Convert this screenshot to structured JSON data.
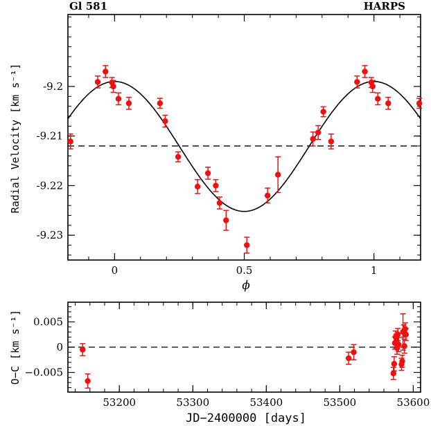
{
  "header": {
    "left": "Gl 581",
    "right": "HARPS"
  },
  "colors": {
    "points": "#ee1111",
    "model": "#000000"
  },
  "chart_data": [
    {
      "type": "scatter",
      "xlabel": "ϕ",
      "ylabel": "Radial Velocity [km s⁻¹]",
      "xlim": [
        -0.18,
        1.18
      ],
      "ylim": [
        -9.235,
        -9.1855
      ],
      "xticks": [
        0,
        0.5,
        1
      ],
      "xtick_labels": [
        "0",
        "0.5",
        "1"
      ],
      "yticks": [
        -9.2,
        -9.21,
        -9.22,
        -9.23
      ],
      "ytick_labels": [
        "-9.2",
        "-9.21",
        "-9.22",
        "-9.23"
      ],
      "mean_line": -9.212,
      "model": {
        "mean": -9.2121,
        "amplitude": 0.0131,
        "phase_of_max": 0
      },
      "points": [
        {
          "x": -0.17,
          "y": -9.2111,
          "err": 0.0015
        },
        {
          "x": -0.065,
          "y": -9.1991,
          "err": 0.0012
        },
        {
          "x": -0.035,
          "y": -9.197,
          "err": 0.0012
        },
        {
          "x": -0.01,
          "y": -9.1992,
          "err": 0.001
        },
        {
          "x": -0.005,
          "y": -9.2,
          "err": 0.0012
        },
        {
          "x": 0.015,
          "y": -9.2025,
          "err": 0.0012
        },
        {
          "x": 0.055,
          "y": -9.2034,
          "err": 0.0012
        },
        {
          "x": 0.175,
          "y": -9.2034,
          "err": 0.001
        },
        {
          "x": 0.195,
          "y": -9.207,
          "err": 0.0012
        },
        {
          "x": 0.245,
          "y": -9.2142,
          "err": 0.001
        },
        {
          "x": 0.32,
          "y": -9.2202,
          "err": 0.0014
        },
        {
          "x": 0.36,
          "y": -9.2175,
          "err": 0.0012
        },
        {
          "x": 0.39,
          "y": -9.22,
          "err": 0.0012
        },
        {
          "x": 0.405,
          "y": -9.2235,
          "err": 0.0012
        },
        {
          "x": 0.43,
          "y": -9.227,
          "err": 0.002
        },
        {
          "x": 0.51,
          "y": -9.232,
          "err": 0.0016
        },
        {
          "x": 0.59,
          "y": -9.222,
          "err": 0.0015
        },
        {
          "x": 0.63,
          "y": -9.2178,
          "err": 0.0036
        },
        {
          "x": 0.765,
          "y": -9.2106,
          "err": 0.0014
        },
        {
          "x": 0.785,
          "y": -9.2093,
          "err": 0.0014
        },
        {
          "x": 0.805,
          "y": -9.2051,
          "err": 0.001
        },
        {
          "x": 0.835,
          "y": -9.2111,
          "err": 0.0015
        },
        {
          "x": 0.935,
          "y": -9.1991,
          "err": 0.0012
        },
        {
          "x": 0.965,
          "y": -9.197,
          "err": 0.0012
        },
        {
          "x": 0.99,
          "y": -9.1992,
          "err": 0.001
        },
        {
          "x": 0.995,
          "y": -9.2,
          "err": 0.0012
        },
        {
          "x": 1.015,
          "y": -9.2025,
          "err": 0.0012
        },
        {
          "x": 1.055,
          "y": -9.2034,
          "err": 0.0012
        },
        {
          "x": 1.175,
          "y": -9.2034,
          "err": 0.001
        }
      ]
    },
    {
      "type": "scatter",
      "xlabel": "JD−2400000 [days]",
      "ylabel": "O−C [km s⁻¹]",
      "xlim": [
        53130,
        53610
      ],
      "ylim": [
        -0.0089,
        0.0089
      ],
      "xticks": [
        53200,
        53300,
        53400,
        53500,
        53600
      ],
      "xtick_labels": [
        "53200",
        "53300",
        "53400",
        "53500",
        "53600"
      ],
      "yticks": [
        0.005,
        0,
        -0.005
      ],
      "ytick_labels": [
        "0.005",
        "0",
        "−0.005"
      ],
      "zero_line": 0,
      "points": [
        {
          "x": 53150,
          "y": -0.0005,
          "err": 0.0012
        },
        {
          "x": 53157,
          "y": -0.0067,
          "err": 0.0014
        },
        {
          "x": 53512,
          "y": -0.0022,
          "err": 0.0012
        },
        {
          "x": 53519,
          "y": -0.001,
          "err": 0.0015
        },
        {
          "x": 53573,
          "y": -0.0052,
          "err": 0.0012
        },
        {
          "x": 53574,
          "y": -0.0033,
          "err": 0.0014
        },
        {
          "x": 53575,
          "y": 0.0008,
          "err": 0.0012
        },
        {
          "x": 53576,
          "y": 0.002,
          "err": 0.0012
        },
        {
          "x": 53577,
          "y": 0.0012,
          "err": 0.0014
        },
        {
          "x": 53578,
          "y": -0.0002,
          "err": 0.0012
        },
        {
          "x": 53579,
          "y": 0.0025,
          "err": 0.0012
        },
        {
          "x": 53580,
          "y": 0.0005,
          "err": 0.0014
        },
        {
          "x": 53584,
          "y": -0.0034,
          "err": 0.0012
        },
        {
          "x": 53585,
          "y": -0.0028,
          "err": 0.0012
        },
        {
          "x": 53586,
          "y": 0.003,
          "err": 0.0036
        },
        {
          "x": 53587,
          "y": 0.0032,
          "err": 0.0012
        },
        {
          "x": 53588,
          "y": 0.0002,
          "err": 0.0014
        },
        {
          "x": 53589,
          "y": 0.0036,
          "err": 0.0012
        },
        {
          "x": 53590,
          "y": 0.0025,
          "err": 0.0012
        }
      ]
    }
  ]
}
